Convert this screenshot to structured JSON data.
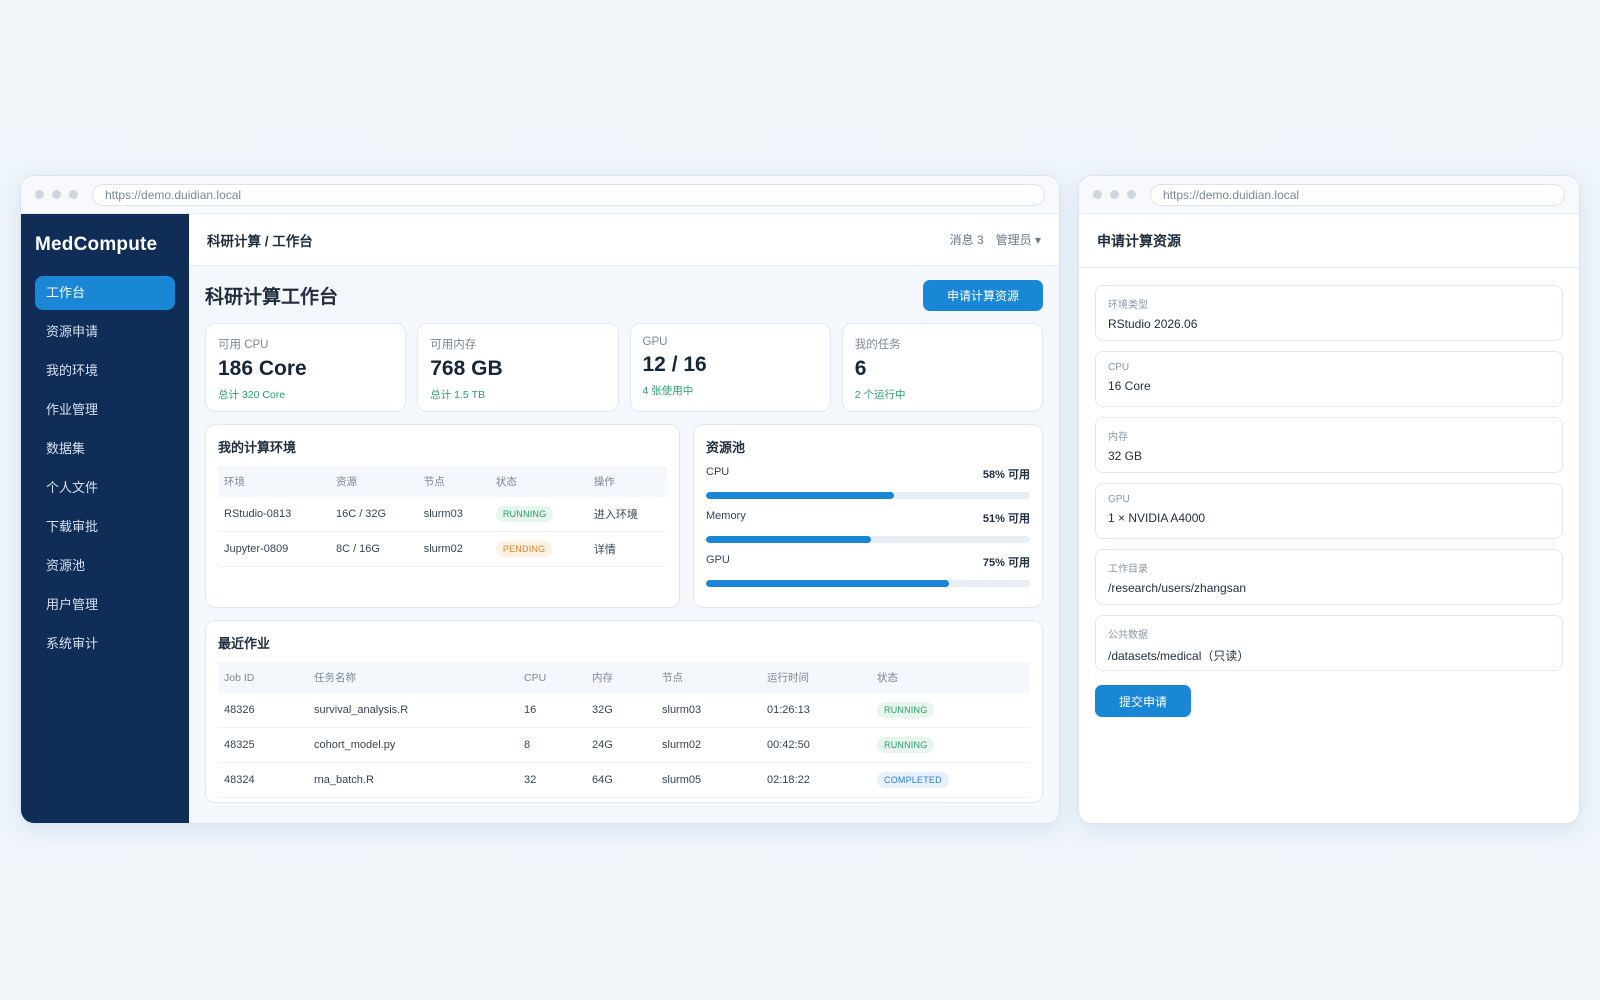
{
  "main_window": {
    "url": "https://demo.duidian.local",
    "brand": "MedCompute",
    "sidebar": {
      "items": [
        {
          "label": "工作台",
          "active": true
        },
        {
          "label": "资源申请"
        },
        {
          "label": "我的环境"
        },
        {
          "label": "作业管理"
        },
        {
          "label": "数据集"
        },
        {
          "label": "个人文件"
        },
        {
          "label": "下载审批"
        },
        {
          "label": "资源池"
        },
        {
          "label": "用户管理"
        },
        {
          "label": "系统审计"
        }
      ]
    },
    "topbar": {
      "breadcrumb": "科研计算 / 工作台",
      "messages": "消息 3",
      "user_menu": "管理员 ▾"
    },
    "page_title": "科研计算工作台",
    "request_button": "申请计算资源",
    "stats": [
      {
        "label": "可用 CPU",
        "value": "186 Core",
        "sub": "总计 320 Core"
      },
      {
        "label": "可用内存",
        "value": "768 GB",
        "sub": "总计 1.5 TB"
      },
      {
        "label": "GPU",
        "value": "12 / 16",
        "sub": "4 张使用中"
      },
      {
        "label": "我的任务",
        "value": "6",
        "sub": "2 个运行中"
      }
    ],
    "environments": {
      "title": "我的计算环境",
      "columns": [
        "环境",
        "资源",
        "节点",
        "状态",
        "操作"
      ],
      "rows": [
        {
          "env": "RStudio-0813",
          "resource": "16C / 32G",
          "node": "slurm03",
          "status": "RUNNING",
          "action": "进入环境"
        },
        {
          "env": "Jupyter-0809",
          "resource": "8C / 16G",
          "node": "slurm02",
          "status": "PENDING",
          "action": "详情"
        }
      ]
    },
    "pool": {
      "title": "资源池",
      "items": [
        {
          "name": "CPU",
          "pct_label": "58% 可用",
          "fill": 0.58
        },
        {
          "name": "Memory",
          "pct_label": "51% 可用",
          "fill": 0.51
        },
        {
          "name": "GPU",
          "pct_label": "75% 可用",
          "fill": 0.75
        }
      ]
    },
    "jobs": {
      "title": "最近作业",
      "columns": [
        "Job ID",
        "任务名称",
        "CPU",
        "内存",
        "节点",
        "运行时间",
        "状态"
      ],
      "rows": [
        {
          "id": "48326",
          "name": "survival_analysis.R",
          "cpu": "16",
          "mem": "32G",
          "node": "slurm03",
          "time": "01:26:13",
          "status": "RUNNING"
        },
        {
          "id": "48325",
          "name": "cohort_model.py",
          "cpu": "8",
          "mem": "24G",
          "node": "slurm02",
          "time": "00:42:50",
          "status": "RUNNING"
        },
        {
          "id": "48324",
          "name": "rna_batch.R",
          "cpu": "32",
          "mem": "64G",
          "node": "slurm05",
          "time": "02:18:22",
          "status": "COMPLETED"
        }
      ]
    }
  },
  "form_window": {
    "url": "https://demo.duidian.local",
    "title": "申请计算资源",
    "fields": [
      {
        "label": "环境类型",
        "value": "RStudio 2026.06"
      },
      {
        "label": "CPU",
        "value": "16 Core"
      },
      {
        "label": "内存",
        "value": "32 GB"
      },
      {
        "label": "GPU",
        "value": "1 × NVIDIA A4000"
      },
      {
        "label": "工作目录",
        "value": "/research/users/zhangsan"
      },
      {
        "label": "公共数据",
        "value": "/datasets/medical（只读）"
      }
    ],
    "submit_button": "提交申请"
  },
  "colors": {
    "sidebar_bg": "#0f2d57",
    "accent": "#1a86d6",
    "running": "#2a9d63",
    "pending": "#d9852a",
    "completed": "#2f7fd1"
  }
}
